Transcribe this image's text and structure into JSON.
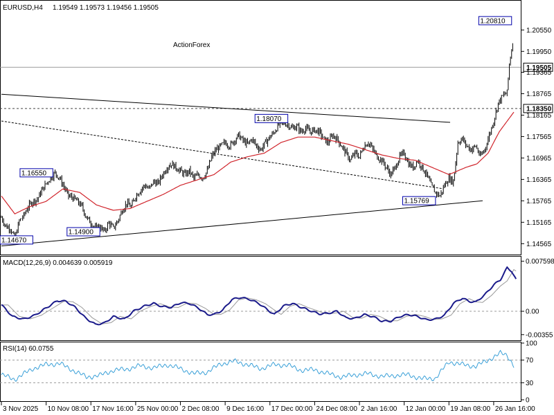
{
  "header": {
    "symbol": "EURUSD,H4",
    "ohlc": "1.19549 1.19573 1.19456 1.19505",
    "watermark": "ActionForex"
  },
  "chart_data": [
    {
      "type": "candlestick",
      "title": "EURUSD,H4",
      "ylim": [
        1.143,
        1.2135
      ],
      "y_ticks": [
        "1.20550",
        "1.19950",
        "1.19365",
        "1.18765",
        "1.18165",
        "1.17565",
        "1.16965",
        "1.16365",
        "1.15765",
        "1.15165",
        "1.14565"
      ],
      "x_ticks": [
        "3 Nov 2025",
        "10 Nov 08:00",
        "17 Nov 16:00",
        "25 Nov 00:00",
        "2 Dec 08:00",
        "9 Dec 16:00",
        "17 Dec 00:00",
        "24 Dec 08:00",
        "2 Jan 16:00",
        "12 Jan 00:00",
        "19 Jan 08:00",
        "26 Jan 16:00"
      ],
      "x_tick_index": [
        0,
        40,
        80,
        120,
        160,
        200,
        240,
        280,
        320,
        360,
        400,
        440
      ],
      "candle_count": 458,
      "price_keys": [
        [
          0,
          1.153
        ],
        [
          4,
          1.1505
        ],
        [
          8,
          1.15
        ],
        [
          12,
          1.147
        ],
        [
          16,
          1.152
        ],
        [
          20,
          1.1535
        ],
        [
          24,
          1.156
        ],
        [
          28,
          1.1575
        ],
        [
          32,
          1.158
        ],
        [
          36,
          1.1605
        ],
        [
          40,
          1.1625
        ],
        [
          44,
          1.164
        ],
        [
          48,
          1.1655
        ],
        [
          52,
          1.164
        ],
        [
          56,
          1.1615
        ],
        [
          60,
          1.159
        ],
        [
          64,
          1.1585
        ],
        [
          68,
          1.1575
        ],
        [
          72,
          1.156
        ],
        [
          76,
          1.153
        ],
        [
          80,
          1.1515
        ],
        [
          84,
          1.15
        ],
        [
          88,
          1.1505
        ],
        [
          92,
          1.149
        ],
        [
          96,
          1.1515
        ],
        [
          100,
          1.15
        ],
        [
          104,
          1.152
        ],
        [
          108,
          1.155
        ],
        [
          112,
          1.157
        ],
        [
          116,
          1.156
        ],
        [
          120,
          1.159
        ],
        [
          124,
          1.1605
        ],
        [
          128,
          1.162
        ],
        [
          132,
          1.161
        ],
        [
          136,
          1.163
        ],
        [
          140,
          1.1625
        ],
        [
          144,
          1.165
        ],
        [
          148,
          1.167
        ],
        [
          152,
          1.168
        ],
        [
          156,
          1.167
        ],
        [
          160,
          1.166
        ],
        [
          164,
          1.165
        ],
        [
          168,
          1.166
        ],
        [
          172,
          1.164
        ],
        [
          176,
          1.165
        ],
        [
          180,
          1.164
        ],
        [
          184,
          1.166
        ],
        [
          188,
          1.17
        ],
        [
          192,
          1.172
        ],
        [
          196,
          1.173
        ],
        [
          200,
          1.174
        ],
        [
          204,
          1.173
        ],
        [
          208,
          1.1745
        ],
        [
          212,
          1.176
        ],
        [
          216,
          1.1745
        ],
        [
          220,
          1.1735
        ],
        [
          224,
          1.175
        ],
        [
          228,
          1.173
        ],
        [
          232,
          1.172
        ],
        [
          236,
          1.174
        ],
        [
          240,
          1.1755
        ],
        [
          244,
          1.177
        ],
        [
          248,
          1.179
        ],
        [
          252,
          1.1795
        ],
        [
          256,
          1.179
        ],
        [
          260,
          1.178
        ],
        [
          264,
          1.1785
        ],
        [
          268,
          1.177
        ],
        [
          272,
          1.178
        ],
        [
          276,
          1.177
        ],
        [
          280,
          1.1775
        ],
        [
          284,
          1.177
        ],
        [
          288,
          1.175
        ],
        [
          292,
          1.174
        ],
        [
          296,
          1.176
        ],
        [
          300,
          1.175
        ],
        [
          304,
          1.173
        ],
        [
          308,
          1.171
        ],
        [
          312,
          1.169
        ],
        [
          316,
          1.171
        ],
        [
          320,
          1.17
        ],
        [
          324,
          1.173
        ],
        [
          328,
          1.174
        ],
        [
          332,
          1.172
        ],
        [
          336,
          1.17
        ],
        [
          340,
          1.169
        ],
        [
          344,
          1.167
        ],
        [
          348,
          1.165
        ],
        [
          352,
          1.167
        ],
        [
          356,
          1.17
        ],
        [
          360,
          1.171
        ],
        [
          364,
          1.168
        ],
        [
          368,
          1.167
        ],
        [
          372,
          1.169
        ],
        [
          376,
          1.167
        ],
        [
          380,
          1.165
        ],
        [
          384,
          1.162
        ],
        [
          388,
          1.16
        ],
        [
          392,
          1.159
        ],
        [
          396,
          1.162
        ],
        [
          400,
          1.164
        ],
        [
          404,
          1.163
        ],
        [
          408,
          1.174
        ],
        [
          412,
          1.175
        ],
        [
          416,
          1.173
        ],
        [
          420,
          1.172
        ],
        [
          424,
          1.173
        ],
        [
          428,
          1.17
        ],
        [
          432,
          1.172
        ],
        [
          436,
          1.176
        ],
        [
          440,
          1.18
        ],
        [
          444,
          1.185
        ],
        [
          448,
          1.187
        ],
        [
          452,
          1.188
        ],
        [
          454,
          1.196
        ],
        [
          456,
          1.2
        ],
        [
          458,
          1.204
        ],
        [
          460,
          1.205
        ],
        [
          462,
          1.198
        ],
        [
          464,
          1.192
        ],
        [
          466,
          1.196
        ],
        [
          468,
          1.195
        ]
      ],
      "ma_keys": [
        [
          0,
          1.159
        ],
        [
          12,
          1.154
        ],
        [
          25,
          1.156
        ],
        [
          40,
          1.1575
        ],
        [
          55,
          1.161
        ],
        [
          70,
          1.16
        ],
        [
          85,
          1.1565
        ],
        [
          100,
          1.155
        ],
        [
          115,
          1.1555
        ],
        [
          130,
          1.1575
        ],
        [
          145,
          1.1595
        ],
        [
          160,
          1.162
        ],
        [
          175,
          1.1635
        ],
        [
          190,
          1.165
        ],
        [
          205,
          1.1685
        ],
        [
          220,
          1.17
        ],
        [
          235,
          1.171
        ],
        [
          250,
          1.174
        ],
        [
          265,
          1.1755
        ],
        [
          280,
          1.1755
        ],
        [
          295,
          1.1745
        ],
        [
          310,
          1.1735
        ],
        [
          325,
          1.172
        ],
        [
          340,
          1.1705
        ],
        [
          355,
          1.1695
        ],
        [
          370,
          1.169
        ],
        [
          385,
          1.167
        ],
        [
          400,
          1.165
        ],
        [
          415,
          1.167
        ],
        [
          425,
          1.168
        ],
        [
          435,
          1.171
        ],
        [
          445,
          1.177
        ],
        [
          458,
          1.1825
        ]
      ],
      "lines": [
        {
          "name": "trendline-upper",
          "style": "solid",
          "points": [
            [
              0,
              1.1875
            ],
            [
              458,
              1.1785
            ]
          ]
        },
        {
          "name": "trendline-lower",
          "style": "solid",
          "points": [
            [
              0,
              1.145
            ],
            [
              458,
              1.1585
            ]
          ]
        },
        {
          "name": "trendline-middle",
          "style": "dashed",
          "points": [
            [
              0,
              1.18
            ],
            [
              458,
              1.158
            ]
          ]
        }
      ],
      "hlines": [
        {
          "value": 1.19505,
          "style": "solid",
          "label": "1.19505"
        },
        {
          "value": 1.1835,
          "style": "dashed",
          "label": "1.18350"
        }
      ],
      "price_labels": [
        {
          "text": "1.20810",
          "value": 1.2081,
          "index": 456
        },
        {
          "text": "1.18070",
          "value": 1.1807,
          "index": 256
        },
        {
          "text": "1.16550",
          "value": 1.1655,
          "index": 46
        },
        {
          "text": "1.14900",
          "value": 1.149,
          "index": 88
        },
        {
          "text": "1.15769",
          "value": 1.15769,
          "index": 388
        },
        {
          "text": "1.14670",
          "value": 1.1467,
          "index": 0
        }
      ],
      "colors": {
        "candle": "#000000",
        "ma": "#d0242b",
        "grid": "#000000"
      }
    },
    {
      "type": "line",
      "title": "MACD(12,26,9) 0.004639 0.005919",
      "ylim": [
        -0.0042,
        0.0082
      ],
      "y_ticks": [
        "0.007598",
        "0.00",
        "-0.00355"
      ],
      "macd_keys": [
        [
          0,
          0.001
        ],
        [
          10,
          -0.0008
        ],
        [
          20,
          -0.0012
        ],
        [
          30,
          -0.0006
        ],
        [
          40,
          0.0005
        ],
        [
          50,
          0.0016
        ],
        [
          58,
          0.0015
        ],
        [
          66,
          0.0006
        ],
        [
          75,
          -0.001
        ],
        [
          84,
          -0.002
        ],
        [
          92,
          -0.0018
        ],
        [
          100,
          -0.0008
        ],
        [
          110,
          -0.0012
        ],
        [
          118,
          0.0
        ],
        [
          128,
          0.0008
        ],
        [
          136,
          0.0012
        ],
        [
          144,
          0.0007
        ],
        [
          152,
          0.0006
        ],
        [
          160,
          0.0013
        ],
        [
          168,
          0.0012
        ],
        [
          176,
          0.0005
        ],
        [
          184,
          -0.0005
        ],
        [
          190,
          -0.0005
        ],
        [
          198,
          0.0002
        ],
        [
          206,
          0.0018
        ],
        [
          214,
          0.0021
        ],
        [
          222,
          0.0018
        ],
        [
          230,
          0.0012
        ],
        [
          238,
          0.0002
        ],
        [
          244,
          -0.0005
        ],
        [
          252,
          0.0008
        ],
        [
          260,
          0.0012
        ],
        [
          268,
          0.0006
        ],
        [
          276,
          0.0001
        ],
        [
          284,
          -0.0004
        ],
        [
          292,
          -0.0003
        ],
        [
          300,
          0.0
        ],
        [
          308,
          -0.001
        ],
        [
          316,
          -0.0011
        ],
        [
          324,
          -0.0005
        ],
        [
          332,
          -0.0008
        ],
        [
          340,
          -0.0015
        ],
        [
          348,
          -0.0015
        ],
        [
          356,
          -0.0008
        ],
        [
          364,
          -0.0005
        ],
        [
          372,
          -0.0008
        ],
        [
          380,
          -0.0013
        ],
        [
          388,
          -0.0012
        ],
        [
          396,
          -0.0006
        ],
        [
          404,
          0.0012
        ],
        [
          412,
          0.002
        ],
        [
          418,
          0.0015
        ],
        [
          424,
          0.0014
        ],
        [
          432,
          0.0025
        ],
        [
          440,
          0.004
        ],
        [
          446,
          0.0048
        ],
        [
          452,
          0.0066
        ],
        [
          456,
          0.0061
        ],
        [
          460,
          0.0048
        ]
      ],
      "signal_lag": 6,
      "colors": {
        "macd": "#1a1a8a",
        "signal": "#999999"
      }
    },
    {
      "type": "line",
      "title": "RSI(14) 60.0755",
      "ylim": [
        0,
        100
      ],
      "y_ticks": [
        "100",
        "70",
        "30",
        "0"
      ],
      "levels": [
        70,
        30
      ],
      "rsi_keys": [
        [
          0,
          44
        ],
        [
          12,
          36
        ],
        [
          28,
          55
        ],
        [
          40,
          62
        ],
        [
          52,
          64
        ],
        [
          64,
          52
        ],
        [
          76,
          40
        ],
        [
          88,
          43
        ],
        [
          100,
          52
        ],
        [
          112,
          54
        ],
        [
          124,
          60
        ],
        [
          136,
          56
        ],
        [
          148,
          62
        ],
        [
          160,
          55
        ],
        [
          172,
          46
        ],
        [
          184,
          49
        ],
        [
          196,
          63
        ],
        [
          208,
          68
        ],
        [
          220,
          62
        ],
        [
          232,
          55
        ],
        [
          244,
          62
        ],
        [
          256,
          61
        ],
        [
          268,
          52
        ],
        [
          280,
          53
        ],
        [
          292,
          46
        ],
        [
          304,
          40
        ],
        [
          316,
          44
        ],
        [
          328,
          46
        ],
        [
          340,
          41
        ],
        [
          352,
          43
        ],
        [
          364,
          44
        ],
        [
          376,
          37
        ],
        [
          388,
          38
        ],
        [
          400,
          67
        ],
        [
          412,
          62
        ],
        [
          424,
          59
        ],
        [
          436,
          71
        ],
        [
          446,
          82
        ],
        [
          452,
          79
        ],
        [
          458,
          60
        ]
      ],
      "colors": {
        "rsi": "#3aa0d8"
      }
    }
  ]
}
